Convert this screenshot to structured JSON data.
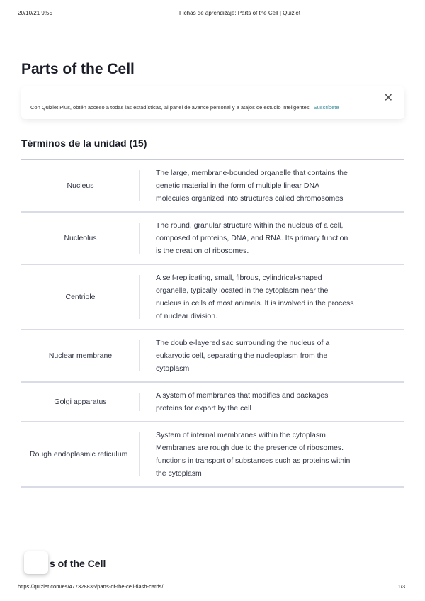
{
  "print_header": {
    "datetime": "20/10/21 9:55",
    "doc_title": "Fichas de aprendizaje: Parts of the Cell | Quizlet"
  },
  "page_title": "Parts of the Cell",
  "banner": {
    "text": "Con Quizlet Plus, obtén acceso a todas las estadísticas, al panel de avance personal y a atajos de estudio inteligentes.",
    "link": "Suscríbete",
    "close_icon": "✕"
  },
  "section_title": "Términos de la unidad (15)",
  "terms": [
    {
      "term": "Nucleus",
      "definition": "The large, membrane-bounded organelle that contains the genetic material in the form of multiple linear DNA molecules organized into structures called chromosomes"
    },
    {
      "term": "Nucleolus",
      "definition": "The round, granular structure within the nucleus of a cell, composed of proteins, DNA, and RNA. Its primary function is the creation of ribosomes."
    },
    {
      "term": "Centriole",
      "definition": "A self-replicating, small, fibrous, cylindrical-shaped organelle, typically located in the cytoplasm near the nucleus in cells of most animals. It is involved in the process of nuclear division."
    },
    {
      "term": "Nuclear membrane",
      "definition": "The double-layered sac surrounding the nucleus of a eukaryotic cell, separating the nucleoplasm from the cytoplasm"
    },
    {
      "term": "Golgi apparatus",
      "definition": "A system of membranes that modifies and packages proteins for export by the cell"
    },
    {
      "term": "Rough endoplasmic reticulum",
      "definition": "System of internal membranes within the cytoplasm. Membranes are rough due to the presence of ribosomes. functions in transport of substances such as proteins within the cytoplasm"
    }
  ],
  "next_section_partial": "s of the Cell",
  "print_footer": {
    "url": "https://quizlet.com/es/477328836/parts-of-the-cell-flash-cards/",
    "page": "1/3"
  }
}
